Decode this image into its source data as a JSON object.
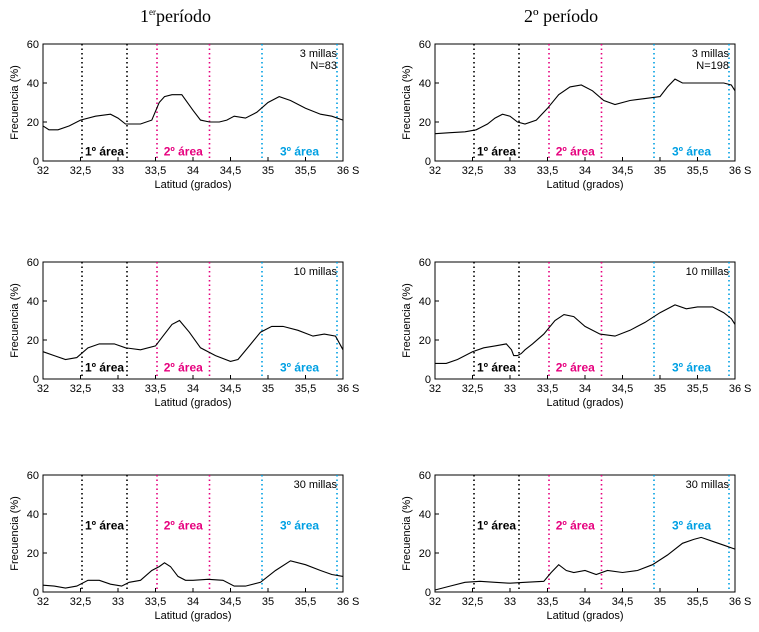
{
  "column_titles": [
    {
      "prefix": "1",
      "superscript": "er",
      "rest": "período"
    },
    {
      "prefix": "2º período",
      "superscript": "",
      "rest": ""
    }
  ],
  "shared": {
    "xlabel": "Latitud (grados)",
    "ylabel": "Frecuencia (%)",
    "x_ticks": [
      "32",
      "32,5",
      "33",
      "33,5",
      "34",
      "34,5",
      "35",
      "35,5",
      "36"
    ],
    "x_tick_values": [
      32,
      32.5,
      33,
      33.5,
      34,
      34.5,
      35,
      35.5,
      36
    ],
    "x_unit": "S",
    "y_ticks": [
      0,
      20,
      40,
      60
    ],
    "xlim": [
      32,
      36
    ],
    "ylim": [
      0,
      60
    ],
    "area_lines": [
      {
        "x": 32.52,
        "color": "#000000"
      },
      {
        "x": 33.12,
        "color": "#000000"
      },
      {
        "x": 33.52,
        "color": "#e6007e"
      },
      {
        "x": 34.22,
        "color": "#e6007e"
      },
      {
        "x": 34.92,
        "color": "#00a0e3"
      },
      {
        "x": 35.92,
        "color": "#00a0e3"
      }
    ],
    "area_labels": [
      {
        "text": "1º área",
        "x": 32.82,
        "color": "#000000"
      },
      {
        "text": "2º área",
        "x": 33.87,
        "color": "#e6007e"
      },
      {
        "text": "3º área",
        "x": 35.42,
        "color": "#00a0e3"
      }
    ]
  },
  "chart_data": [
    {
      "type": "line",
      "panel": "1er período – 3 millas",
      "annotation": [
        "3 millas",
        "N=83"
      ],
      "area_label_y": 5,
      "xlim": [
        32,
        36
      ],
      "ylim": [
        0,
        60
      ],
      "x": [
        32.0,
        32.08,
        32.2,
        32.35,
        32.5,
        32.7,
        32.9,
        33.0,
        33.1,
        33.3,
        33.45,
        33.55,
        33.62,
        33.72,
        33.85,
        34.0,
        34.1,
        34.22,
        34.35,
        34.45,
        34.55,
        34.7,
        34.85,
        35.0,
        35.15,
        35.3,
        35.5,
        35.7,
        35.85,
        36.0
      ],
      "y": [
        18,
        16,
        16,
        18,
        21,
        23,
        24,
        22,
        19,
        19,
        21,
        30,
        33,
        34,
        34,
        26,
        21,
        20,
        20,
        21,
        23,
        22,
        25,
        30,
        33,
        31,
        27,
        24,
        23,
        21
      ]
    },
    {
      "type": "line",
      "panel": "2º período – 3 millas",
      "annotation": [
        "3 millas",
        "N=198"
      ],
      "area_label_y": 5,
      "xlim": [
        32,
        36
      ],
      "ylim": [
        0,
        60
      ],
      "x": [
        32.0,
        32.2,
        32.4,
        32.55,
        32.7,
        32.8,
        32.9,
        33.0,
        33.1,
        33.2,
        33.35,
        33.5,
        33.65,
        33.8,
        33.95,
        34.1,
        34.25,
        34.4,
        34.6,
        34.8,
        35.0,
        35.1,
        35.2,
        35.3,
        35.5,
        35.7,
        35.85,
        35.95,
        36.0
      ],
      "y": [
        14,
        14.5,
        15,
        16,
        19,
        22,
        24,
        23,
        20,
        19,
        21,
        27,
        34,
        38,
        39,
        36,
        31,
        29,
        31,
        32,
        33,
        38,
        42,
        40,
        40,
        40,
        40,
        39,
        36
      ]
    },
    {
      "type": "line",
      "panel": "1er período – 10 millas",
      "annotation": [
        "10 millas"
      ],
      "area_label_y": 6,
      "xlim": [
        32,
        36
      ],
      "ylim": [
        0,
        60
      ],
      "x": [
        32.0,
        32.15,
        32.3,
        32.45,
        32.6,
        32.75,
        32.95,
        33.1,
        33.3,
        33.5,
        33.6,
        33.72,
        33.82,
        33.95,
        34.1,
        34.3,
        34.5,
        34.6,
        34.75,
        34.9,
        35.05,
        35.2,
        35.4,
        35.6,
        35.75,
        35.9,
        36.0
      ],
      "y": [
        14,
        12,
        10,
        11,
        16,
        18,
        18,
        16,
        15,
        17,
        22,
        28,
        30,
        24,
        16,
        12,
        9,
        10,
        17,
        24,
        27,
        27,
        25,
        22,
        23,
        22,
        15
      ]
    },
    {
      "type": "line",
      "panel": "2º período – 10 millas",
      "annotation": [
        "10 millas"
      ],
      "area_label_y": 6,
      "xlim": [
        32,
        36
      ],
      "ylim": [
        0,
        60
      ],
      "x": [
        32.0,
        32.15,
        32.3,
        32.5,
        32.65,
        32.8,
        32.95,
        33.02,
        33.05,
        33.1,
        33.15,
        33.2,
        33.3,
        33.45,
        33.6,
        33.72,
        33.85,
        34.0,
        34.2,
        34.4,
        34.6,
        34.8,
        35.0,
        35.2,
        35.35,
        35.5,
        35.7,
        35.85,
        35.95,
        36.0
      ],
      "y": [
        8,
        8,
        10,
        14,
        16,
        17,
        18,
        15,
        12,
        12,
        13,
        15,
        18,
        23,
        30,
        33,
        32,
        27,
        23,
        22,
        25,
        29,
        34,
        38,
        36,
        37,
        37,
        34,
        31,
        28
      ]
    },
    {
      "type": "line",
      "panel": "1er período – 30 millas",
      "annotation": [
        "30 millas"
      ],
      "area_label_y": 34,
      "xlim": [
        32,
        36
      ],
      "ylim": [
        0,
        60
      ],
      "x": [
        32.0,
        32.15,
        32.3,
        32.45,
        32.6,
        32.75,
        32.9,
        33.05,
        33.15,
        33.3,
        33.45,
        33.55,
        33.62,
        33.7,
        33.8,
        33.9,
        34.0,
        34.2,
        34.4,
        34.55,
        34.7,
        34.9,
        35.1,
        35.3,
        35.5,
        35.7,
        35.85,
        36.0
      ],
      "y": [
        3.5,
        3,
        2,
        3,
        6,
        6,
        4,
        3,
        5,
        6,
        11,
        13,
        15,
        13,
        8,
        6,
        6,
        6.5,
        6,
        3,
        3,
        5,
        11,
        16,
        14,
        11,
        9,
        8
      ]
    },
    {
      "type": "line",
      "panel": "2º período – 30 millas",
      "annotation": [
        "30 millas"
      ],
      "area_label_y": 34,
      "xlim": [
        32,
        36
      ],
      "ylim": [
        0,
        60
      ],
      "x": [
        32.0,
        32.2,
        32.4,
        32.6,
        32.8,
        33.0,
        33.2,
        33.45,
        33.55,
        33.65,
        33.75,
        33.85,
        34.0,
        34.15,
        34.3,
        34.5,
        34.7,
        34.9,
        35.1,
        35.3,
        35.45,
        35.55,
        35.7,
        35.85,
        36.0
      ],
      "y": [
        1,
        3,
        5,
        5.5,
        5,
        4.5,
        5,
        5.5,
        10,
        14,
        11,
        10,
        11,
        9,
        11,
        10,
        11,
        14,
        19,
        25,
        27,
        28,
        26,
        24,
        22
      ]
    }
  ]
}
